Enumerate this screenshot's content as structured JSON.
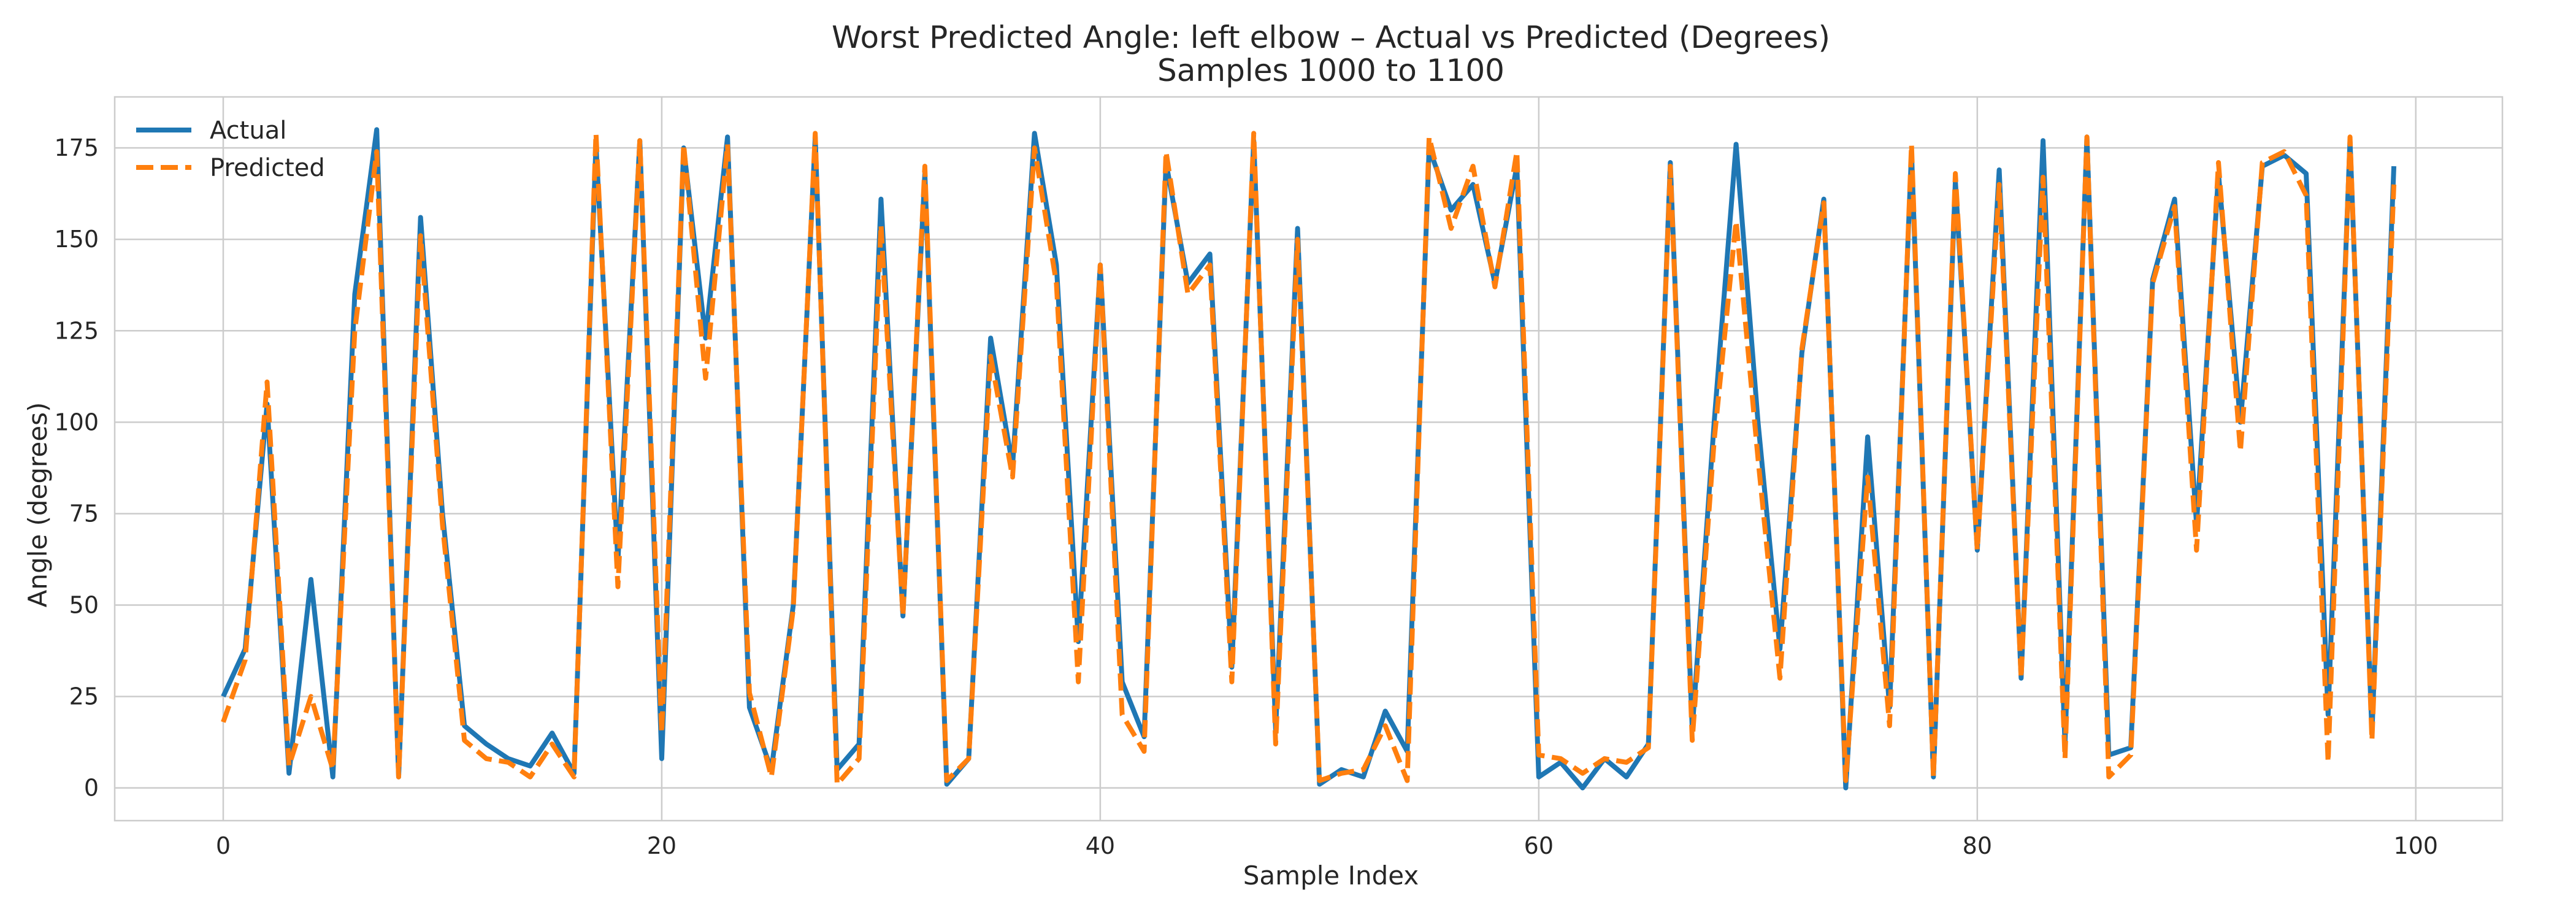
{
  "chart_data": {
    "type": "line",
    "title": "Worst Predicted Angle: left elbow – Actual vs Predicted (Degrees)",
    "subtitle": "Samples 1000 to 1100",
    "xlabel": "Sample Index",
    "ylabel": "Angle (degrees)",
    "xlim": [
      -4.95,
      103.95
    ],
    "ylim": [
      -8.95,
      188.95
    ],
    "xticks": [
      0,
      20,
      40,
      60,
      80,
      100
    ],
    "yticks": [
      0,
      25,
      50,
      75,
      100,
      125,
      150,
      175
    ],
    "grid": true,
    "legend_position": "top-left",
    "x": [
      0,
      1,
      2,
      3,
      4,
      5,
      6,
      7,
      8,
      9,
      10,
      11,
      12,
      13,
      14,
      15,
      16,
      17,
      18,
      19,
      20,
      21,
      22,
      23,
      24,
      25,
      26,
      27,
      28,
      29,
      30,
      31,
      32,
      33,
      34,
      35,
      36,
      37,
      38,
      39,
      40,
      41,
      42,
      43,
      44,
      45,
      46,
      47,
      48,
      49,
      50,
      51,
      52,
      53,
      54,
      55,
      56,
      57,
      58,
      59,
      60,
      61,
      62,
      63,
      64,
      65,
      66,
      67,
      68,
      69,
      70,
      71,
      72,
      73,
      74,
      75,
      76,
      77,
      78,
      79,
      80,
      81,
      82,
      83,
      84,
      85,
      86,
      87,
      88,
      89,
      90,
      91,
      92,
      93,
      94,
      95,
      96,
      97,
      98,
      99
    ],
    "series": [
      {
        "name": "Actual",
        "color": "#1f77b4",
        "style": "solid",
        "values": [
          25,
          38,
          105,
          4,
          57,
          3,
          135,
          180,
          3,
          156,
          75,
          17,
          12,
          8,
          6,
          15,
          4,
          176,
          62,
          177,
          8,
          175,
          123,
          178,
          22,
          5,
          50,
          178,
          5,
          12,
          161,
          47,
          168,
          1,
          8,
          123,
          88,
          179,
          143,
          40,
          143,
          29,
          14,
          171,
          138,
          146,
          33,
          177,
          16,
          153,
          1,
          5,
          3,
          21,
          10,
          175,
          158,
          165,
          138,
          170,
          3,
          7,
          0,
          8,
          3,
          12,
          171,
          16,
          100,
          176,
          100,
          38,
          119,
          161,
          0,
          96,
          22,
          174,
          3,
          166,
          65,
          169,
          30,
          177,
          12,
          178,
          9,
          11,
          139,
          161,
          72,
          168,
          100,
          170,
          173,
          168,
          20,
          177,
          15,
          170
        ]
      },
      {
        "name": "Predicted",
        "color": "#ff7f0e",
        "style": "dashed",
        "values": [
          18,
          35,
          111,
          6,
          25,
          5,
          125,
          174,
          3,
          151,
          72,
          13,
          8,
          7,
          3,
          12,
          3,
          179,
          55,
          177,
          15,
          176,
          112,
          176,
          26,
          3,
          49,
          179,
          1,
          8,
          154,
          47,
          170,
          2,
          8,
          118,
          85,
          175,
          138,
          29,
          143,
          20,
          10,
          174,
          135,
          143,
          29,
          179,
          12,
          150,
          2,
          4,
          5,
          17,
          2,
          178,
          153,
          170,
          137,
          174,
          9,
          8,
          4,
          8,
          7,
          11,
          170,
          13,
          95,
          155,
          90,
          30,
          120,
          160,
          2,
          85,
          17,
          176,
          3,
          168,
          65,
          165,
          30,
          167,
          8,
          178,
          3,
          9,
          138,
          159,
          65,
          171,
          92,
          171,
          174,
          162,
          7,
          178,
          13,
          165
        ]
      }
    ]
  }
}
